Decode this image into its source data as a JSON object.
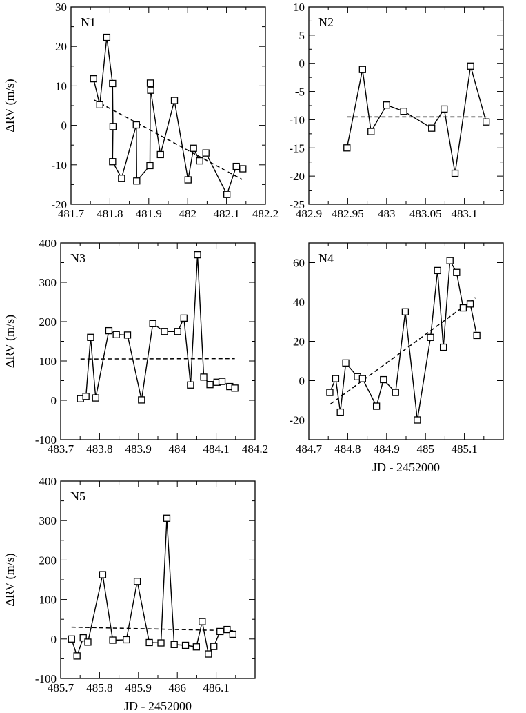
{
  "chart_data": [
    {
      "type": "line",
      "label": "N1",
      "ylabel": "ΔRV (m/s)",
      "xlabel": "",
      "xlim": [
        481.7,
        482.2
      ],
      "ylim": [
        -20,
        30
      ],
      "xticks": [
        481.7,
        481.8,
        481.9,
        482,
        482.1,
        482.2
      ],
      "xtick_labels": [
        "481.7",
        "481.8",
        "481.9",
        "482",
        "482.1",
        "482.2"
      ],
      "yticks": [
        -20,
        -10,
        0,
        10,
        20,
        30
      ],
      "ytick_labels": [
        "-20",
        "-10",
        "0",
        "10",
        "20",
        "30"
      ],
      "points": [
        [
          481.758,
          11.8
        ],
        [
          481.774,
          5.2
        ],
        [
          481.792,
          22.3
        ],
        [
          481.807,
          10.6
        ],
        [
          481.808,
          -0.3
        ],
        [
          481.807,
          -9.2
        ],
        [
          481.83,
          -13.4
        ],
        [
          481.868,
          0.1
        ],
        [
          481.869,
          -14.1
        ],
        [
          481.903,
          -10.2
        ],
        [
          481.904,
          10.7
        ],
        [
          481.905,
          8.9
        ],
        [
          481.93,
          -7.4
        ],
        [
          481.966,
          6.3
        ],
        [
          482.001,
          -13.8
        ],
        [
          482.015,
          -5.8
        ],
        [
          482.031,
          -9.0
        ],
        [
          482.047,
          -7.0
        ],
        [
          482.101,
          -17.5
        ],
        [
          482.125,
          -10.4
        ],
        [
          482.142,
          -11.0
        ]
      ],
      "trend": [
        [
          481.76,
          6.4
        ],
        [
          482.14,
          -13.7
        ]
      ]
    },
    {
      "type": "line",
      "label": "N2",
      "ylabel": "",
      "xlabel": "",
      "xlim": [
        482.9,
        483.15
      ],
      "ylim": [
        -25,
        10
      ],
      "xticks": [
        482.9,
        482.95,
        483,
        483.05,
        483.1
      ],
      "xtick_labels": [
        "482.9",
        "482.95",
        "483",
        "483.05",
        "483.1"
      ],
      "yticks": [
        -25,
        -20,
        -15,
        -10,
        -5,
        0,
        5,
        10
      ],
      "ytick_labels": [
        "-25",
        "-20",
        "-15",
        "-10",
        "-5",
        "0",
        "5",
        "10"
      ],
      "points": [
        [
          482.949,
          -15.0
        ],
        [
          482.969,
          -1.1
        ],
        [
          482.98,
          -12.1
        ],
        [
          483.0,
          -7.4
        ],
        [
          483.022,
          -8.5
        ],
        [
          483.058,
          -11.5
        ],
        [
          483.074,
          -8.1
        ],
        [
          483.088,
          -19.5
        ],
        [
          483.108,
          -0.5
        ],
        [
          483.128,
          -10.4
        ]
      ],
      "trend": [
        [
          482.949,
          -9.5
        ],
        [
          483.128,
          -9.5
        ]
      ]
    },
    {
      "type": "line",
      "label": "N3",
      "ylabel": "ΔRV (m/s)",
      "xlabel": "",
      "xlim": [
        483.7,
        484.2
      ],
      "ylim": [
        -100,
        400
      ],
      "xticks": [
        483.7,
        483.8,
        483.9,
        484,
        484.1,
        484.2
      ],
      "xtick_labels": [
        "483.7",
        "483.8",
        "483.9",
        "484",
        "484.1",
        "484.2"
      ],
      "yticks": [
        -100,
        0,
        100,
        200,
        300,
        400
      ],
      "ytick_labels": [
        "-100",
        "0",
        "100",
        "200",
        "300",
        "400"
      ],
      "points": [
        [
          483.751,
          4
        ],
        [
          483.765,
          10
        ],
        [
          483.777,
          160
        ],
        [
          483.79,
          6
        ],
        [
          483.824,
          177
        ],
        [
          483.843,
          167
        ],
        [
          483.872,
          166
        ],
        [
          483.908,
          1
        ],
        [
          483.937,
          195
        ],
        [
          483.967,
          175
        ],
        [
          484.001,
          175
        ],
        [
          484.017,
          209
        ],
        [
          484.034,
          39
        ],
        [
          484.052,
          370
        ],
        [
          484.068,
          59
        ],
        [
          484.084,
          40
        ],
        [
          484.102,
          46
        ],
        [
          484.115,
          48
        ],
        [
          484.135,
          35
        ],
        [
          484.148,
          31
        ]
      ],
      "trend": [
        [
          483.751,
          105
        ],
        [
          484.148,
          106
        ]
      ]
    },
    {
      "type": "line",
      "label": "N4",
      "ylabel": "",
      "xlabel": "JD - 2452000",
      "xlim": [
        484.7,
        485.2
      ],
      "ylim": [
        -30,
        70
      ],
      "xticks": [
        484.7,
        484.8,
        484.9,
        485,
        485.1
      ],
      "xtick_labels": [
        "484.7",
        "484.8",
        "484.9",
        "485",
        "485.1"
      ],
      "yticks": [
        -20,
        0,
        20,
        40,
        60
      ],
      "ytick_labels": [
        "-20",
        "0",
        "20",
        "40",
        "60"
      ],
      "points": [
        [
          484.754,
          -6
        ],
        [
          484.769,
          1
        ],
        [
          484.781,
          -16
        ],
        [
          484.795,
          9
        ],
        [
          484.825,
          2
        ],
        [
          484.838,
          1
        ],
        [
          484.874,
          -13
        ],
        [
          484.892,
          0.5
        ],
        [
          484.923,
          -6
        ],
        [
          484.948,
          35
        ],
        [
          484.979,
          -20
        ],
        [
          485.013,
          22
        ],
        [
          485.031,
          56
        ],
        [
          485.046,
          17
        ],
        [
          485.063,
          61
        ],
        [
          485.08,
          55
        ],
        [
          485.097,
          37
        ],
        [
          485.115,
          39
        ],
        [
          485.132,
          23
        ]
      ],
      "trend": [
        [
          484.755,
          -12
        ],
        [
          485.128,
          42
        ]
      ]
    },
    {
      "type": "line",
      "label": "N5",
      "ylabel": "ΔRV (m/s)",
      "xlabel": "JD - 2452000",
      "xlim": [
        485.7,
        486.2
      ],
      "ylim": [
        -100,
        400
      ],
      "xticks": [
        485.7,
        485.8,
        485.9,
        486,
        486.1
      ],
      "xtick_labels": [
        "485.7",
        "485.8",
        "485.9",
        "486",
        "486.1"
      ],
      "yticks": [
        -100,
        0,
        100,
        200,
        300,
        400
      ],
      "ytick_labels": [
        "-100",
        "0",
        "100",
        "200",
        "300",
        "400"
      ],
      "points": [
        [
          485.728,
          0
        ],
        [
          485.742,
          -43
        ],
        [
          485.758,
          3
        ],
        [
          485.77,
          -8
        ],
        [
          485.808,
          163
        ],
        [
          485.834,
          -3
        ],
        [
          485.869,
          -2
        ],
        [
          485.897,
          146
        ],
        [
          485.928,
          -9
        ],
        [
          485.958,
          -10
        ],
        [
          485.973,
          306
        ],
        [
          485.992,
          -14
        ],
        [
          486.021,
          -16
        ],
        [
          486.049,
          -20
        ],
        [
          486.064,
          44
        ],
        [
          486.08,
          -38
        ],
        [
          486.094,
          -19
        ],
        [
          486.11,
          19
        ],
        [
          486.128,
          24
        ],
        [
          486.143,
          12
        ]
      ],
      "trend": [
        [
          485.728,
          30
        ],
        [
          486.143,
          21
        ]
      ]
    }
  ]
}
